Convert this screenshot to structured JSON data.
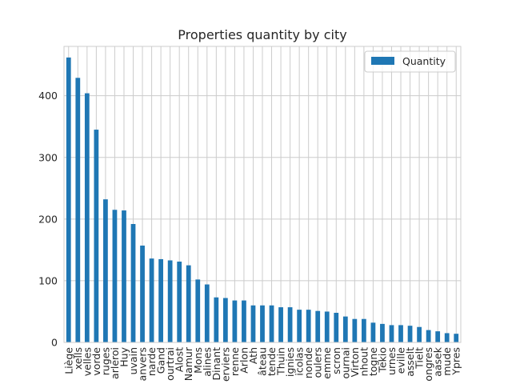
{
  "chart_data": {
    "type": "bar",
    "title": "Properties quantity by city",
    "xlabel": "",
    "ylabel": "",
    "ylim": [
      0,
      480
    ],
    "yticks": [
      0,
      100,
      200,
      300,
      400
    ],
    "grid": true,
    "legend": {
      "position": "top-right",
      "entries": [
        "Quantity"
      ]
    },
    "bar_color": "#1f77b4",
    "categories": [
      "Liège",
      "xells",
      "velles",
      "vorde",
      "ruges",
      "arleroi",
      "Huy",
      "uvain",
      "anvers",
      "narde",
      "Gand",
      "ourtrai",
      "Alost",
      "Namur",
      "Mons",
      "alines",
      "Dinant",
      "erviers",
      "renne",
      "Arlon",
      "Ath",
      "âteau",
      "tende",
      "Thuin",
      "ignies",
      "icolas",
      "nonde",
      "oulers",
      "emme",
      "scron",
      "ournai",
      "Virton",
      "nhout",
      "togne",
      "Tekio",
      "urnes",
      "eville",
      "asselt",
      "Tielt",
      "ongres",
      "aasek",
      "mude",
      "Ypres"
    ],
    "series": [
      {
        "name": "Quantity",
        "values": [
          462,
          429,
          404,
          345,
          232,
          215,
          214,
          192,
          157,
          136,
          135,
          133,
          131,
          125,
          102,
          94,
          73,
          72,
          68,
          68,
          60,
          60,
          60,
          57,
          57,
          53,
          53,
          51,
          50,
          48,
          42,
          38,
          38,
          32,
          30,
          28,
          28,
          27,
          25,
          20,
          18,
          15,
          14
        ]
      }
    ]
  }
}
